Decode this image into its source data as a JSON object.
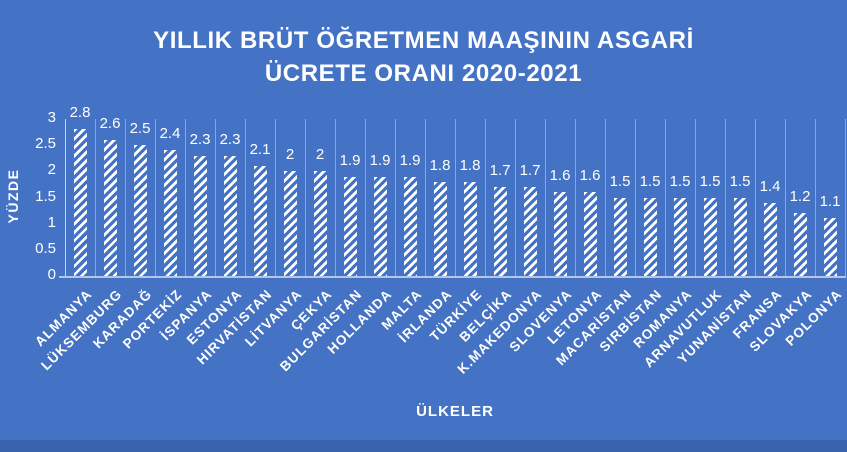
{
  "page": {
    "background_color": "#4472C4",
    "bottom_strip_color": "#3A63AE"
  },
  "chart_data": {
    "type": "bar",
    "title": "YILLIK BRÜT ÖĞRETMEN MAAŞININ ASGARİ ÜCRETE ORANI 2020-2021",
    "title_lines": {
      "line1": "YILLIK BRÜT ÖĞRETMEN MAAŞININ ASGARİ",
      "line2": "ÜCRETE ORANI 2020-2021"
    },
    "xlabel": "ÜLKELER",
    "ylabel": "YÜZDE",
    "ylim": [
      0,
      3
    ],
    "yticks": [
      0,
      0.5,
      1,
      1.5,
      2,
      2.5,
      3
    ],
    "grid": "vertical category gridlines",
    "legend": "none",
    "data_labels": true,
    "categories": [
      "ALMANYA",
      "LÜKSEMBURG",
      "KARADAĞ",
      "PORTEKİZ",
      "İSPANYA",
      "ESTONYA",
      "HIRVATİSTAN",
      "LİTVANYA",
      "ÇEKYA",
      "BULGARİSTAN",
      "HOLLANDA",
      "MALTA",
      "İRLANDA",
      "TÜRKİYE",
      "BELÇİKA",
      "K.MAKEDONYA",
      "SLOVENYA",
      "LETONYA",
      "MACARİSTAN",
      "SIRBİSTAN",
      "ROMANYA",
      "ARNAVUTLUK",
      "YUNANİSTAN",
      "FRANSA",
      "SLOVAKYA",
      "POLONYA"
    ],
    "values": [
      2.8,
      2.6,
      2.5,
      2.4,
      2.3,
      2.3,
      2.1,
      2,
      2,
      1.9,
      1.9,
      1.9,
      1.8,
      1.8,
      1.7,
      1.7,
      1.6,
      1.6,
      1.5,
      1.5,
      1.5,
      1.5,
      1.5,
      1.4,
      1.2,
      1.1
    ],
    "colors": {
      "background": "#4472C4",
      "bar_pattern_foreground": "#FFFFFF",
      "bar_pattern_style": "diagonal-hatch-up",
      "text": "#FFFFFF",
      "gridline": "rgba(255,255,255,0.38)",
      "axis_line": "rgba(255,255,255,0.6)"
    }
  }
}
